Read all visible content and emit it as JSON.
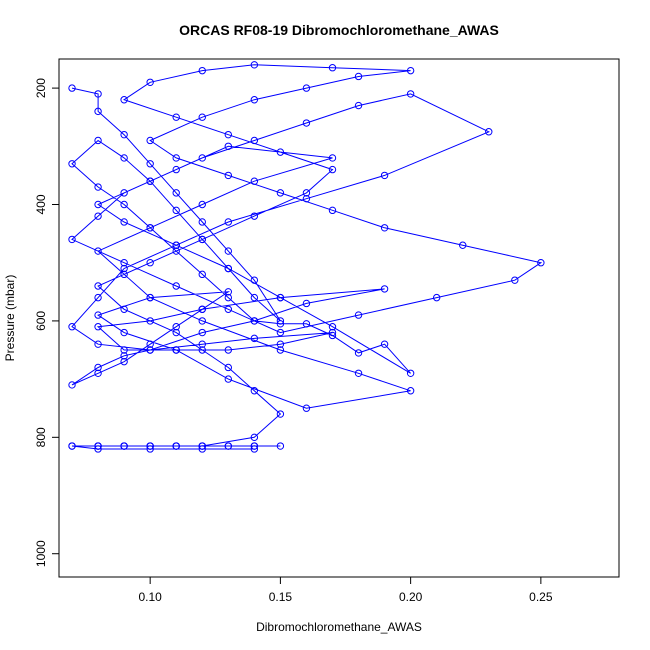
{
  "chart_data": {
    "type": "line",
    "title": "ORCAS RF08-19 Dibromochloromethane_AWAS",
    "xlabel": "Dibromochloromethane_AWAS",
    "ylabel": "Pressure (mbar)",
    "xlim": [
      0.065,
      0.28
    ],
    "ylim": [
      1040,
      150
    ],
    "x_ticks": [
      0.1,
      0.15,
      0.2,
      0.25
    ],
    "x_tick_labels": [
      "0.10",
      "0.15",
      "0.20",
      "0.25"
    ],
    "y_ticks": [
      200,
      400,
      600,
      800,
      1000
    ],
    "y_tick_labels": [
      "200",
      "400",
      "600",
      "800",
      "1000"
    ],
    "color": "#0000ff",
    "marker": "open-circle",
    "grid": false,
    "series": [
      {
        "x": [
          0.07,
          0.08,
          0.08,
          0.09,
          0.1,
          0.11,
          0.12,
          0.13,
          0.14,
          0.15,
          0.14,
          0.13,
          0.12,
          0.11,
          0.1,
          0.09,
          0.08,
          0.07,
          0.08,
          0.09,
          0.1,
          0.11,
          0.12,
          0.13,
          0.14,
          0.15,
          0.16,
          0.17,
          0.18,
          0.19,
          0.2,
          0.17,
          0.15,
          0.13,
          0.11,
          0.09,
          0.08,
          0.1,
          0.12,
          0.14,
          0.16,
          0.18,
          0.2,
          0.23,
          0.19,
          0.16,
          0.13,
          0.11,
          0.09,
          0.08,
          0.07,
          0.08,
          0.1,
          0.12,
          0.14,
          0.16,
          0.19,
          0.15,
          0.12,
          0.1,
          0.08,
          0.09,
          0.11,
          0.13,
          0.15,
          0.17,
          0.14,
          0.12,
          0.1,
          0.09,
          0.08,
          0.07,
          0.08,
          0.09,
          0.1,
          0.11,
          0.12,
          0.13,
          0.1,
          0.08,
          0.09,
          0.11,
          0.13,
          0.16,
          0.2,
          0.18,
          0.15,
          0.12,
          0.1,
          0.09,
          0.08,
          0.1,
          0.12,
          0.14,
          0.17,
          0.13,
          0.11,
          0.09,
          0.08,
          0.07,
          0.09,
          0.11,
          0.13,
          0.15,
          0.18,
          0.21,
          0.24,
          0.25,
          0.22,
          0.19,
          0.17,
          0.15,
          0.13,
          0.11,
          0.1,
          0.12,
          0.14,
          0.16,
          0.18,
          0.2,
          0.17,
          0.14,
          0.12,
          0.1,
          0.09,
          0.11,
          0.13,
          0.15,
          0.17,
          0.16,
          0.14,
          0.12,
          0.1,
          0.08,
          0.09,
          0.11,
          0.12,
          0.13,
          0.14,
          0.15,
          0.14,
          0.12,
          0.11,
          0.1,
          0.09,
          0.08,
          0.07,
          0.08,
          0.09,
          0.1,
          0.11,
          0.12,
          0.13,
          0.14,
          0.15,
          0.14,
          0.13,
          0.12,
          0.11,
          0.1,
          0.09,
          0.08,
          0.07,
          0.08,
          0.1,
          0.12,
          0.14
        ],
        "y": [
          200,
          210,
          240,
          280,
          330,
          380,
          430,
          480,
          530,
          600,
          560,
          510,
          460,
          410,
          360,
          320,
          290,
          330,
          370,
          400,
          440,
          480,
          520,
          560,
          600,
          605,
          605,
          625,
          655,
          640,
          690,
          610,
          560,
          510,
          470,
          430,
          400,
          360,
          320,
          290,
          260,
          230,
          210,
          275,
          350,
          390,
          430,
          470,
          510,
          560,
          610,
          640,
          650,
          620,
          600,
          570,
          545,
          560,
          580,
          600,
          610,
          650,
          650,
          650,
          640,
          620,
          630,
          640,
          650,
          660,
          680,
          710,
          690,
          670,
          640,
          610,
          580,
          550,
          560,
          590,
          620,
          650,
          700,
          750,
          720,
          690,
          650,
          600,
          560,
          520,
          480,
          440,
          400,
          360,
          320,
          300,
          340,
          380,
          420,
          460,
          500,
          540,
          580,
          620,
          590,
          560,
          530,
          500,
          470,
          440,
          410,
          380,
          350,
          320,
          290,
          250,
          220,
          200,
          180,
          170,
          165,
          160,
          170,
          190,
          220,
          250,
          280,
          310,
          340,
          380,
          420,
          460,
          500,
          540,
          580,
          620,
          650,
          680,
          720,
          760,
          800,
          815,
          815,
          815,
          815,
          815,
          815,
          815,
          815,
          815,
          815,
          815,
          815,
          815,
          815,
          815,
          815,
          815,
          815,
          815,
          815,
          815,
          815,
          820,
          820,
          820,
          820
        ]
      }
    ]
  }
}
